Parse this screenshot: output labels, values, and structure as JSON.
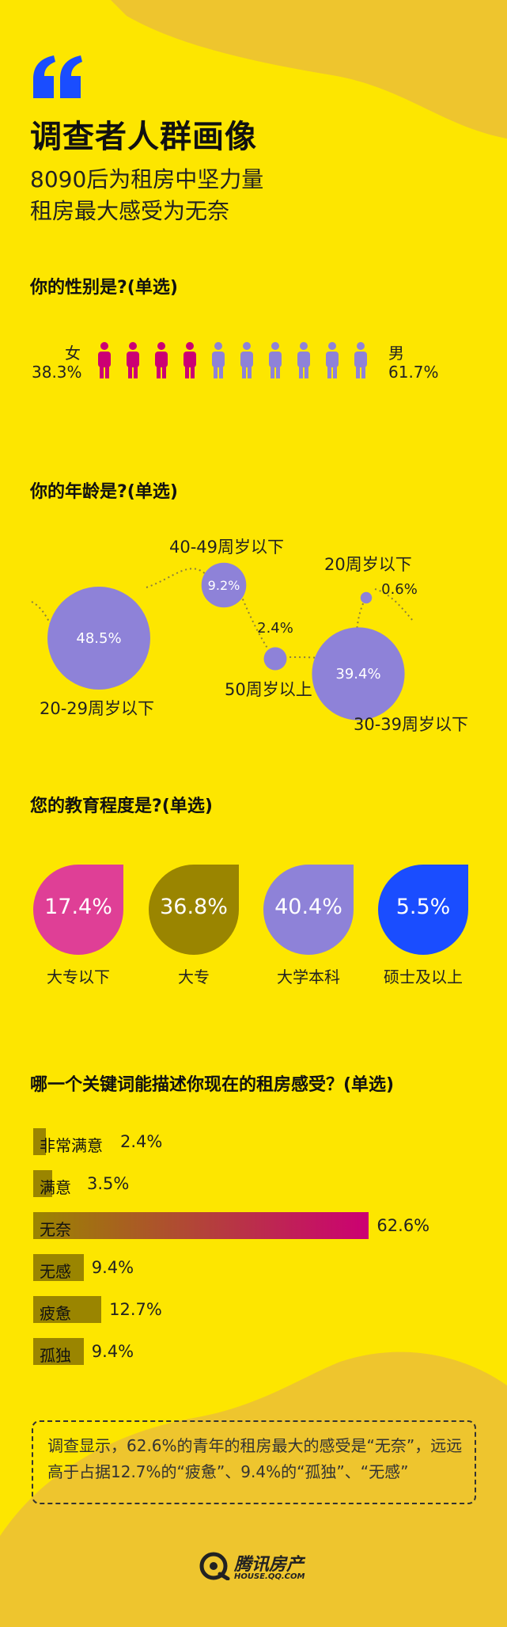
{
  "colors": {
    "background": "#fde600",
    "shape": "#eec52e",
    "blue": "#1a4dff",
    "magenta": "#cc0073",
    "purple": "#8e82d8",
    "olive": "#9a8500",
    "pink": "#df3f96"
  },
  "header": {
    "quote_mark": "“",
    "title": "调查者人群画像",
    "subtitle_line1": "8090后为租房中坚力量",
    "subtitle_line2": "租房最大感受为无奈"
  },
  "gender": {
    "question": "你的性别是?(单选)",
    "female_label": "女",
    "female_value": "38.3%",
    "male_label": "男",
    "male_value": "61.7%",
    "icon_name": "person-icon"
  },
  "age": {
    "question": "你的年龄是?(单选)"
  },
  "education": {
    "question": "您的教育程度是?(单选)"
  },
  "feeling": {
    "question": "哪一个关键词能描述你现在的租房感受？(单选)"
  },
  "chart_data": [
    {
      "type": "pictogram",
      "title": "你的性别是?(单选)",
      "categories": [
        "女",
        "男"
      ],
      "values": [
        38.3,
        61.7
      ],
      "unit": "%",
      "icons_total": 10,
      "icons_per_category": [
        4,
        6
      ],
      "colors": [
        "#cc0073",
        "#8e82d8"
      ]
    },
    {
      "type": "bubble",
      "title": "你的年龄是?(单选)",
      "categories": [
        "20-29周岁以下",
        "40-49周岁以下",
        "50周岁以上",
        "30-39周岁以下",
        "20周岁以下"
      ],
      "values": [
        48.5,
        9.2,
        2.4,
        39.4,
        0.6
      ],
      "value_labels": [
        "48.5%",
        "9.2%",
        "2.4%",
        "39.4%",
        "0.6%"
      ],
      "unit": "%",
      "color": "#8e82d8"
    },
    {
      "type": "bubble",
      "title": "您的教育程度是?(单选)",
      "categories": [
        "大专以下",
        "大专",
        "大学本科",
        "硕士及以上"
      ],
      "values": [
        17.4,
        36.8,
        40.4,
        5.5
      ],
      "value_labels": [
        "17.4%",
        "36.8%",
        "40.4%",
        "5.5%"
      ],
      "unit": "%",
      "colors": [
        "#df3f96",
        "#9a8500",
        "#8e82d8",
        "#1a4dff"
      ]
    },
    {
      "type": "bar",
      "orientation": "horizontal",
      "title": "哪一个关键词能描述你现在的租房感受？(单选)",
      "categories": [
        "非常满意",
        "满意",
        "无奈",
        "无感",
        "疲惫",
        "孤独"
      ],
      "values": [
        2.4,
        3.5,
        62.6,
        9.4,
        12.7,
        9.4
      ],
      "value_labels": [
        "2.4%",
        "3.5%",
        "62.6%",
        "9.4%",
        "12.7%",
        "9.4%"
      ],
      "unit": "%",
      "highlight": "无奈",
      "colors": [
        "#9a8500",
        "#cc0073"
      ]
    }
  ],
  "note": {
    "text": "调查显示，62.6%的青年的租房最大的感受是“无奈”，远远高于占据12.7%的“疲惫”、9.4%的“孤独”、“无感”"
  },
  "logo": {
    "name": "腾讯房产",
    "url": "HOUSE.QQ.COM"
  }
}
